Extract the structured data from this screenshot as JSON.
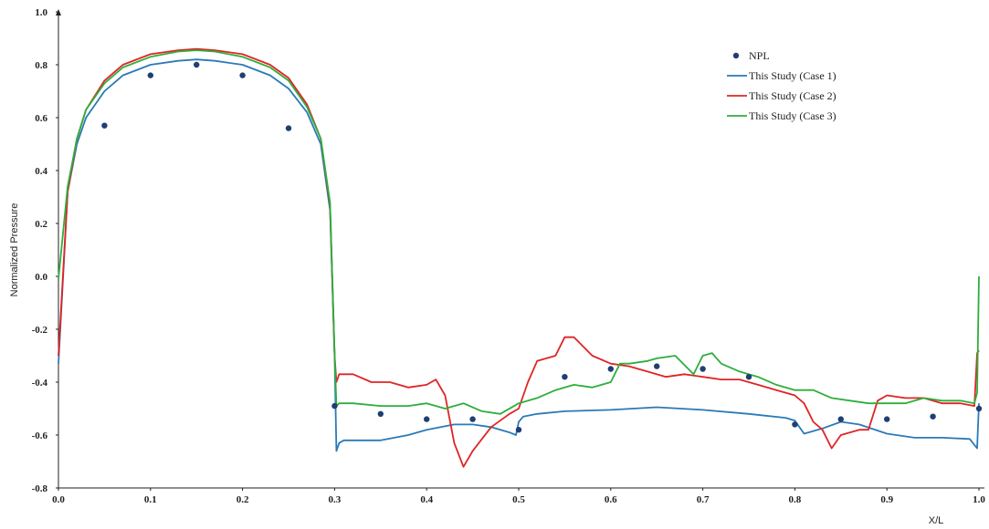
{
  "chart_data": {
    "type": "line",
    "title": "",
    "xlabel": "X/L",
    "ylabel": "Normalized Pressure",
    "xlim": [
      0.0,
      1.0
    ],
    "ylim": [
      -0.8,
      1.0
    ],
    "x_ticks": [
      "0.0",
      "0.1",
      "0.2",
      "0.3",
      "0.4",
      "0.5",
      "0.6",
      "0.7",
      "0.8",
      "0.9",
      "1.0"
    ],
    "y_ticks": [
      "-0.8",
      "-0.6",
      "-0.4",
      "-0.2",
      "0.0",
      "0.2",
      "0.4",
      "0.6",
      "0.8",
      "1.0"
    ],
    "grid": false,
    "legend_position": "top-right",
    "legend": [
      "NPL",
      "This Study (Case 1)",
      "This Study (Case 2)",
      "This Study (Case 3)"
    ],
    "colors": {
      "npl": "#1f3f73",
      "case1": "#2a7ab8",
      "case2": "#e02424",
      "case3": "#2fae3c"
    },
    "npl_points": {
      "x": [
        0.05,
        0.1,
        0.15,
        0.2,
        0.25,
        0.3,
        0.35,
        0.4,
        0.45,
        0.5,
        0.55,
        0.6,
        0.65,
        0.7,
        0.75,
        0.8,
        0.85,
        0.9,
        0.95,
        1.0
      ],
      "y": [
        0.57,
        0.76,
        0.8,
        0.76,
        0.56,
        -0.49,
        -0.52,
        -0.54,
        -0.54,
        -0.58,
        -0.38,
        -0.35,
        -0.34,
        -0.35,
        -0.38,
        -0.56,
        -0.54,
        -0.54,
        -0.53,
        -0.5
      ]
    },
    "series": [
      {
        "name": "This Study (Case 1)",
        "x": [
          0.0,
          0.01,
          0.02,
          0.03,
          0.05,
          0.07,
          0.1,
          0.13,
          0.15,
          0.17,
          0.2,
          0.23,
          0.25,
          0.27,
          0.285,
          0.295,
          0.3,
          0.302,
          0.305,
          0.31,
          0.35,
          0.38,
          0.4,
          0.43,
          0.45,
          0.47,
          0.49,
          0.497,
          0.5,
          0.505,
          0.52,
          0.55,
          0.6,
          0.65,
          0.7,
          0.75,
          0.79,
          0.8,
          0.81,
          0.83,
          0.85,
          0.87,
          0.9,
          0.93,
          0.96,
          0.99,
          0.998,
          1.0
        ],
        "y": [
          -0.33,
          0.32,
          0.5,
          0.6,
          0.7,
          0.76,
          0.8,
          0.815,
          0.82,
          0.815,
          0.8,
          0.76,
          0.71,
          0.62,
          0.5,
          0.25,
          -0.3,
          -0.66,
          -0.63,
          -0.62,
          -0.62,
          -0.6,
          -0.58,
          -0.56,
          -0.56,
          -0.57,
          -0.59,
          -0.6,
          -0.55,
          -0.53,
          -0.52,
          -0.51,
          -0.505,
          -0.495,
          -0.505,
          -0.52,
          -0.535,
          -0.545,
          -0.595,
          -0.575,
          -0.55,
          -0.56,
          -0.595,
          -0.61,
          -0.61,
          -0.615,
          -0.65,
          -0.48
        ]
      },
      {
        "name": "This Study (Case 2)",
        "x": [
          0.0,
          0.01,
          0.02,
          0.03,
          0.05,
          0.07,
          0.1,
          0.13,
          0.15,
          0.17,
          0.2,
          0.23,
          0.25,
          0.27,
          0.285,
          0.295,
          0.3,
          0.302,
          0.305,
          0.32,
          0.34,
          0.36,
          0.38,
          0.4,
          0.41,
          0.42,
          0.43,
          0.44,
          0.45,
          0.47,
          0.49,
          0.5,
          0.51,
          0.52,
          0.54,
          0.55,
          0.56,
          0.58,
          0.6,
          0.62,
          0.64,
          0.66,
          0.68,
          0.7,
          0.72,
          0.74,
          0.76,
          0.78,
          0.8,
          0.81,
          0.82,
          0.83,
          0.84,
          0.85,
          0.86,
          0.87,
          0.88,
          0.89,
          0.9,
          0.92,
          0.94,
          0.96,
          0.98,
          0.995,
          0.998,
          1.0
        ],
        "y": [
          -0.3,
          0.32,
          0.52,
          0.63,
          0.74,
          0.8,
          0.84,
          0.855,
          0.86,
          0.855,
          0.84,
          0.8,
          0.75,
          0.65,
          0.52,
          0.27,
          -0.3,
          -0.4,
          -0.37,
          -0.37,
          -0.4,
          -0.4,
          -0.42,
          -0.41,
          -0.39,
          -0.45,
          -0.63,
          -0.72,
          -0.66,
          -0.57,
          -0.52,
          -0.5,
          -0.4,
          -0.32,
          -0.3,
          -0.23,
          -0.23,
          -0.3,
          -0.33,
          -0.34,
          -0.36,
          -0.38,
          -0.37,
          -0.38,
          -0.39,
          -0.39,
          -0.41,
          -0.43,
          -0.45,
          -0.48,
          -0.55,
          -0.58,
          -0.65,
          -0.6,
          -0.59,
          -0.58,
          -0.58,
          -0.47,
          -0.45,
          -0.46,
          -0.46,
          -0.48,
          -0.48,
          -0.49,
          -0.29,
          -0.28
        ]
      },
      {
        "name": "This Study (Case 3)",
        "x": [
          0.0,
          0.01,
          0.02,
          0.03,
          0.05,
          0.07,
          0.1,
          0.13,
          0.15,
          0.17,
          0.2,
          0.23,
          0.25,
          0.27,
          0.285,
          0.295,
          0.3,
          0.302,
          0.305,
          0.32,
          0.35,
          0.38,
          0.4,
          0.42,
          0.44,
          0.46,
          0.48,
          0.5,
          0.52,
          0.54,
          0.56,
          0.58,
          0.6,
          0.61,
          0.62,
          0.64,
          0.65,
          0.67,
          0.69,
          0.7,
          0.71,
          0.72,
          0.74,
          0.76,
          0.78,
          0.8,
          0.82,
          0.84,
          0.86,
          0.88,
          0.9,
          0.92,
          0.94,
          0.96,
          0.98,
          0.995,
          0.998,
          1.0
        ],
        "y": [
          -0.01,
          0.34,
          0.52,
          0.63,
          0.73,
          0.79,
          0.83,
          0.85,
          0.855,
          0.85,
          0.83,
          0.79,
          0.74,
          0.64,
          0.52,
          0.28,
          -0.29,
          -0.49,
          -0.48,
          -0.48,
          -0.49,
          -0.49,
          -0.48,
          -0.5,
          -0.48,
          -0.51,
          -0.52,
          -0.48,
          -0.46,
          -0.43,
          -0.41,
          -0.42,
          -0.4,
          -0.33,
          -0.33,
          -0.32,
          -0.31,
          -0.3,
          -0.37,
          -0.3,
          -0.29,
          -0.33,
          -0.36,
          -0.38,
          -0.41,
          -0.43,
          -0.43,
          -0.46,
          -0.47,
          -0.48,
          -0.48,
          -0.48,
          -0.46,
          -0.47,
          -0.47,
          -0.48,
          -0.44,
          0.0
        ]
      }
    ]
  }
}
